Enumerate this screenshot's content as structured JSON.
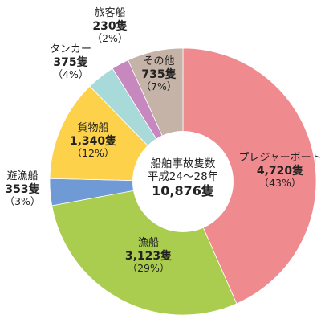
{
  "chart_data": {
    "type": "pie",
    "donut": true,
    "center_text": [
      "船舶事故隻数",
      "平成24～28年",
      "10,876隻"
    ],
    "slices": [
      {
        "label": "プレジャーボート",
        "count": 4720,
        "count_text": "4,720隻",
        "pct_text": "（43%）",
        "color": "#ef8a8f"
      },
      {
        "label": "漁船",
        "count": 3123,
        "count_text": "3,123隻",
        "pct_text": "（29%）",
        "color": "#aacd4f"
      },
      {
        "label": "遊漁船",
        "count": 353,
        "count_text": "353隻",
        "pct_text": "（3%）",
        "color": "#6f9ad6"
      },
      {
        "label": "貨物船",
        "count": 1340,
        "count_text": "1,340隻",
        "pct_text": "（12%）",
        "color": "#fdd24a"
      },
      {
        "label": "タンカー",
        "count": 375,
        "count_text": "375隻",
        "pct_text": "（4%）",
        "color": "#a8dada"
      },
      {
        "label": "旅客船",
        "count": 230,
        "count_text": "230隻",
        "pct_text": "（2%）",
        "color": "#c787bf"
      },
      {
        "label": "その他",
        "count": 735,
        "count_text": "735隻",
        "pct_text": "（7%）",
        "color": "#c4b3a6"
      }
    ]
  }
}
